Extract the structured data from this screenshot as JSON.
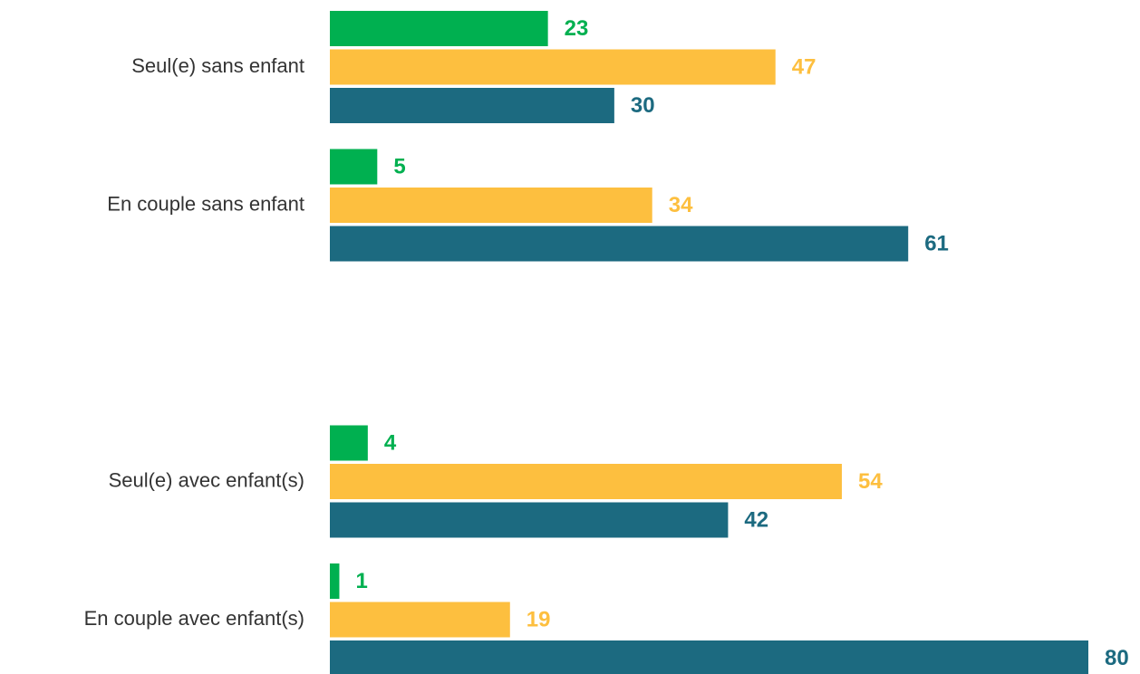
{
  "chart_data": {
    "type": "barh",
    "categories": [
      "Seul(e) sans enfant",
      "En couple sans enfant",
      null,
      "Seul(e) avec enfant(s)",
      "En couple avec enfant(s)"
    ],
    "series": [
      {
        "color": "#00b050",
        "values": [
          23,
          5,
          null,
          4,
          1
        ]
      },
      {
        "color": "#fdbf3f",
        "values": [
          47,
          34,
          null,
          54,
          19
        ]
      },
      {
        "color": "#1c6a80",
        "values": [
          30,
          61,
          null,
          42,
          80
        ]
      }
    ],
    "xlim": [
      0,
      80
    ]
  }
}
